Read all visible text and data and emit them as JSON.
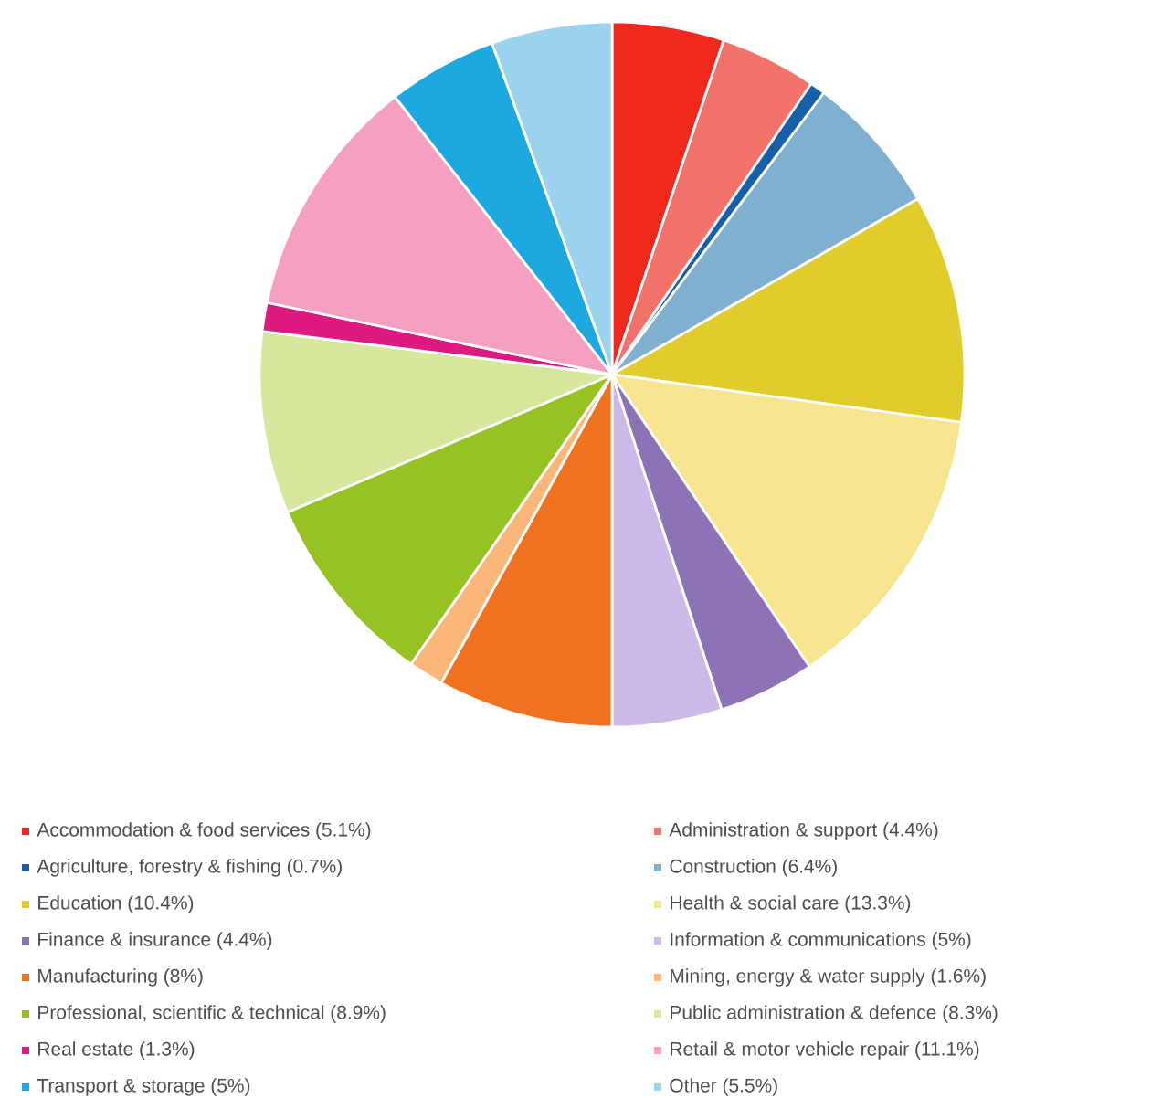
{
  "chart_data": {
    "type": "pie",
    "legend": "bottom",
    "categories": [
      "Accommodation & food services (5.1%)",
      "Administration & support (4.4%)",
      "Agriculture, forestry & fishing (0.7%)",
      "Construction (6.4%)",
      "Education (10.4%)",
      "Health & social care (13.3%)",
      "Finance & insurance (4.4%)",
      "Information & communications (5%)",
      "Manufacturing (8%)",
      "Mining, energy & water supply (1.6%)",
      "Professional, scientific & technical (8.9%)",
      "Public administration & defence (8.3%)",
      "Real estate (1.3%)",
      "Retail & motor vehicle repair (11.1%)",
      "Transport & storage (5%)",
      "Other (5.5%)"
    ],
    "values": [
      5.1,
      4.4,
      0.7,
      6.4,
      10.4,
      13.3,
      4.4,
      5,
      8,
      1.6,
      8.9,
      8.3,
      1.3,
      11.1,
      5,
      5.5
    ],
    "colors": [
      "#f0281e",
      "#f3726a",
      "#1560a8",
      "#7fb0d0",
      "#e0cc2a",
      "#f7e48f",
      "#8b73b5",
      "#cdb9e8",
      "#ef7220",
      "#fbb77a",
      "#96c224",
      "#d4e79a",
      "#dc1a80",
      "#f5a0c0",
      "#1ea8e0",
      "#9bd3ef"
    ]
  }
}
